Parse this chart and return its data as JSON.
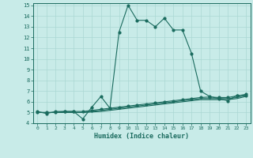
{
  "x": [
    0,
    1,
    2,
    3,
    4,
    5,
    6,
    7,
    8,
    9,
    10,
    11,
    12,
    13,
    14,
    15,
    16,
    17,
    18,
    19,
    20,
    21,
    22,
    23
  ],
  "line1": [
    5.1,
    4.9,
    5.1,
    5.1,
    5.1,
    4.4,
    5.5,
    6.5,
    5.4,
    12.5,
    15.0,
    13.6,
    13.6,
    13.0,
    13.8,
    12.7,
    12.7,
    10.5,
    7.0,
    6.5,
    6.3,
    6.1,
    6.6,
    6.6
  ],
  "line2": [
    5.0,
    5.0,
    5.0,
    5.1,
    5.1,
    5.1,
    5.2,
    5.3,
    5.4,
    5.5,
    5.6,
    5.7,
    5.8,
    5.9,
    6.0,
    6.1,
    6.2,
    6.3,
    6.4,
    6.45,
    6.4,
    6.4,
    6.55,
    6.7
  ],
  "line3": [
    5.0,
    5.0,
    5.0,
    5.0,
    5.0,
    5.0,
    5.1,
    5.2,
    5.3,
    5.4,
    5.5,
    5.6,
    5.7,
    5.8,
    5.9,
    6.0,
    6.1,
    6.2,
    6.3,
    6.3,
    6.3,
    6.3,
    6.4,
    6.6
  ],
  "line4": [
    5.0,
    5.0,
    5.0,
    5.0,
    5.0,
    5.0,
    5.05,
    5.1,
    5.2,
    5.3,
    5.4,
    5.5,
    5.6,
    5.7,
    5.8,
    5.9,
    6.0,
    6.1,
    6.2,
    6.2,
    6.2,
    6.2,
    6.3,
    6.5
  ],
  "line_color": "#1a6b5e",
  "bg_color": "#c8ebe8",
  "grid_color": "#aad8d3",
  "xlabel": "Humidex (Indice chaleur)",
  "xlim": [
    -0.5,
    23.5
  ],
  "ylim": [
    4,
    15.2
  ],
  "yticks": [
    4,
    5,
    6,
    7,
    8,
    9,
    10,
    11,
    12,
    13,
    14,
    15
  ],
  "xticks": [
    0,
    1,
    2,
    3,
    4,
    5,
    6,
    7,
    8,
    9,
    10,
    11,
    12,
    13,
    14,
    15,
    16,
    17,
    18,
    19,
    20,
    21,
    22,
    23
  ]
}
